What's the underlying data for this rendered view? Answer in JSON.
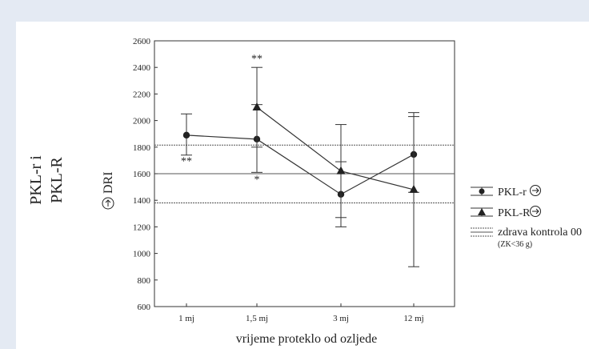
{
  "chart_data": {
    "type": "line",
    "title": "",
    "xlabel": "vrijeme proteklo od ozljede",
    "ylabel_lines": [
      "PKL-r i",
      "PKL-R"
    ],
    "ylabel_sub": "DRI",
    "categories": [
      "1 mj",
      "1,5 mj",
      "3 mj",
      "12 mj"
    ],
    "ylim": [
      600,
      2600
    ],
    "yticks": [
      600,
      800,
      1000,
      1200,
      1400,
      1600,
      1800,
      2000,
      2200,
      2400,
      2600
    ],
    "series": [
      {
        "name": "PKL-r",
        "marker": "circle",
        "points": [
          {
            "x": "1 mj",
            "y": 1890,
            "low": 1740,
            "high": 2050
          },
          {
            "x": "1,5 mj",
            "y": 1860,
            "low": 1610,
            "high": 2120
          },
          {
            "x": "3 mj",
            "y": 1445,
            "low": 1200,
            "high": 1690
          },
          {
            "x": "12 mj",
            "y": 1745,
            "low": 1460,
            "high": 2030
          }
        ]
      },
      {
        "name": "PKL-R",
        "marker": "triangle",
        "points": [
          {
            "x": "1,5 mj",
            "y": 2100,
            "low": 1800,
            "high": 2400
          },
          {
            "x": "3 mj",
            "y": 1620,
            "low": 1270,
            "high": 1970
          },
          {
            "x": "12 mj",
            "y": 1480,
            "low": 900,
            "high": 2060
          }
        ]
      }
    ],
    "reference": {
      "name": "zdrava kontrola 00",
      "note": "(ZK<36 g)",
      "mean": 1600,
      "low": 1380,
      "high": 1815
    },
    "annotations": [
      {
        "text": "**",
        "x": "1 mj",
        "y": 1670
      },
      {
        "text": "*",
        "x": "1,5 mj",
        "y": 1530
      },
      {
        "text": "**",
        "x": "1,5 mj",
        "y": 2440
      }
    ],
    "legend": "right",
    "grid": false
  }
}
